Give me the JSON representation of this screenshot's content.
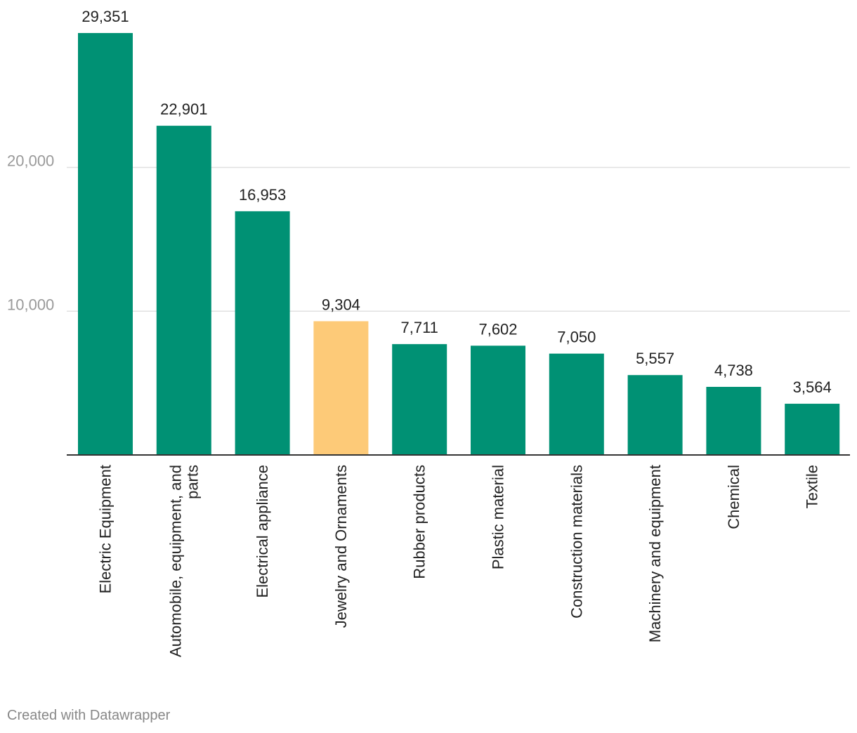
{
  "chart_data": {
    "type": "bar",
    "categories": [
      "Electric Equipment",
      "Automobile, equipment, and parts",
      "Electrical appliance",
      "Jewelry and Ornaments",
      "Rubber products",
      "Plastic material",
      "Construction materials",
      "Machinery and equipment",
      "Chemical",
      "Textile"
    ],
    "category_lines": [
      [
        "Electric Equipment"
      ],
      [
        "Automobile, equipment, and",
        "parts"
      ],
      [
        "Electrical appliance"
      ],
      [
        "Jewelry and Ornaments"
      ],
      [
        "Rubber products"
      ],
      [
        "Plastic material"
      ],
      [
        "Construction materials"
      ],
      [
        "Machinery and equipment"
      ],
      [
        "Chemical"
      ],
      [
        "Textile"
      ]
    ],
    "values": [
      29351,
      22901,
      16953,
      9304,
      7711,
      7602,
      7050,
      5557,
      4738,
      3564
    ],
    "value_labels": [
      "29,351",
      "22,901",
      "16,953",
      "9,304",
      "7,711",
      "7,602",
      "7,050",
      "5,557",
      "4,738",
      "3,564"
    ],
    "highlight_index": 3,
    "colors": {
      "bar": "#009174",
      "highlight": "#fdca78",
      "grid": "#e0e0e0",
      "axis": "#333333",
      "tick_label": "#9a9a9a",
      "value_label": "#222222",
      "category_label": "#222222"
    },
    "yticks": [
      10000,
      20000
    ],
    "ytick_labels": [
      "10,000",
      "20,000"
    ],
    "ylim": [
      0,
      30000
    ],
    "grid": true,
    "title": "",
    "xlabel": "",
    "ylabel": ""
  },
  "footer": {
    "credit": "Created with Datawrapper"
  }
}
